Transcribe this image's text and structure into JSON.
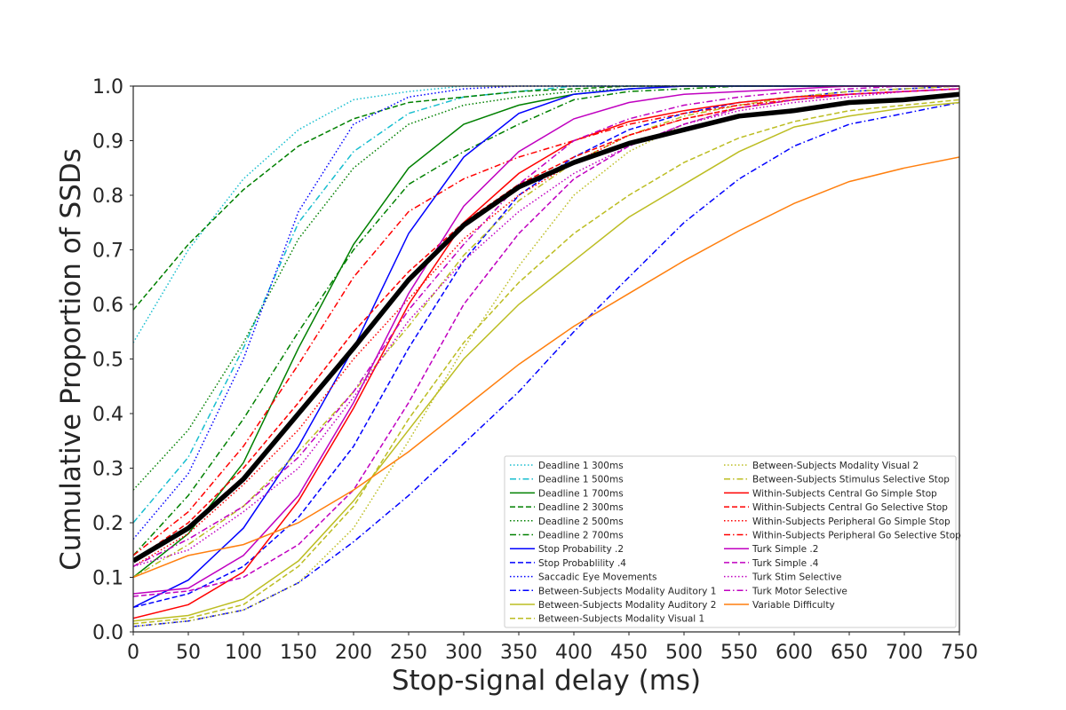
{
  "chart_data": {
    "type": "line",
    "xlabel": "Stop-signal delay (ms)",
    "ylabel": "Cumulative Proportion of SSDs",
    "xlim": [
      0,
      750
    ],
    "ylim": [
      0,
      1
    ],
    "x_ticks": [
      "0",
      "50",
      "100",
      "150",
      "200",
      "250",
      "300",
      "350",
      "400",
      "450",
      "500",
      "550",
      "600",
      "650",
      "700",
      "750"
    ],
    "y_ticks": [
      "0.0",
      "0.1",
      "0.2",
      "0.3",
      "0.4",
      "0.5",
      "0.6",
      "0.7",
      "0.8",
      "0.9",
      "1.0"
    ],
    "grid": false,
    "legend_position": "lower-right",
    "x": [
      0,
      50,
      100,
      150,
      200,
      250,
      300,
      350,
      400,
      450,
      500,
      550,
      600,
      650,
      700,
      750
    ],
    "series": [
      {
        "name": "Deadline 1 300ms",
        "color": "#17becf",
        "dash": "dotted",
        "values": [
          0.53,
          0.7,
          0.83,
          0.92,
          0.975,
          0.99,
          1.0,
          1.0,
          1.0,
          1.0,
          1.0,
          1.0,
          1.0,
          1.0,
          1.0,
          1.0
        ]
      },
      {
        "name": "Deadline 1 500ms",
        "color": "#17becf",
        "dash": "dashdot",
        "values": [
          0.2,
          0.32,
          0.52,
          0.75,
          0.88,
          0.95,
          0.98,
          0.99,
          1.0,
          1.0,
          1.0,
          1.0,
          1.0,
          1.0,
          1.0,
          1.0
        ]
      },
      {
        "name": "Deadline 1 700ms",
        "color": "#008000",
        "dash": "solid",
        "values": [
          0.1,
          0.18,
          0.31,
          0.52,
          0.71,
          0.85,
          0.93,
          0.965,
          0.985,
          0.995,
          1.0,
          1.0,
          1.0,
          1.0,
          1.0,
          1.0
        ]
      },
      {
        "name": "Deadline 2 300ms",
        "color": "#008000",
        "dash": "dashed",
        "values": [
          0.59,
          0.71,
          0.81,
          0.89,
          0.94,
          0.97,
          0.98,
          0.99,
          0.995,
          1.0,
          1.0,
          1.0,
          1.0,
          1.0,
          1.0,
          1.0
        ]
      },
      {
        "name": "Deadline 2 500ms",
        "color": "#008000",
        "dash": "dotted",
        "values": [
          0.26,
          0.37,
          0.53,
          0.72,
          0.85,
          0.93,
          0.965,
          0.98,
          0.99,
          0.995,
          1.0,
          1.0,
          1.0,
          1.0,
          1.0,
          1.0
        ]
      },
      {
        "name": "Deadline 2 700ms",
        "color": "#008000",
        "dash": "dashdot",
        "values": [
          0.14,
          0.25,
          0.39,
          0.55,
          0.7,
          0.82,
          0.88,
          0.93,
          0.975,
          0.99,
          0.995,
          1.0,
          1.0,
          1.0,
          1.0,
          1.0
        ]
      },
      {
        "name": "Stop Probability .2",
        "color": "#0000ff",
        "dash": "solid",
        "values": [
          0.045,
          0.095,
          0.19,
          0.34,
          0.52,
          0.73,
          0.87,
          0.95,
          0.985,
          0.995,
          1.0,
          1.0,
          1.0,
          1.0,
          1.0,
          1.0
        ]
      },
      {
        "name": "Stop Probablility .4",
        "color": "#0000ff",
        "dash": "dashed",
        "values": [
          0.045,
          0.07,
          0.12,
          0.21,
          0.34,
          0.52,
          0.68,
          0.8,
          0.87,
          0.92,
          0.95,
          0.97,
          0.98,
          0.99,
          0.995,
          1.0
        ]
      },
      {
        "name": "Saccadic Eye Movements",
        "color": "#0000ff",
        "dash": "dotted",
        "values": [
          0.17,
          0.29,
          0.5,
          0.77,
          0.93,
          0.98,
          0.995,
          1.0,
          1.0,
          1.0,
          1.0,
          1.0,
          1.0,
          1.0,
          1.0,
          1.0
        ]
      },
      {
        "name": "Between-Subjects Modality Auditory 1",
        "color": "#0000ff",
        "dash": "dashdot",
        "values": [
          0.01,
          0.02,
          0.04,
          0.09,
          0.165,
          0.25,
          0.345,
          0.44,
          0.55,
          0.65,
          0.75,
          0.83,
          0.89,
          0.93,
          0.95,
          0.97
        ]
      },
      {
        "name": "Between-Subjects Modality Auditory 2",
        "color": "#bcbd22",
        "dash": "solid",
        "values": [
          0.02,
          0.03,
          0.06,
          0.13,
          0.24,
          0.37,
          0.5,
          0.6,
          0.68,
          0.76,
          0.82,
          0.88,
          0.925,
          0.945,
          0.96,
          0.97
        ]
      },
      {
        "name": "Between-Subjects Modality Visual 1",
        "color": "#bcbd22",
        "dash": "dashed",
        "values": [
          0.015,
          0.025,
          0.05,
          0.12,
          0.23,
          0.39,
          0.53,
          0.64,
          0.73,
          0.8,
          0.86,
          0.905,
          0.935,
          0.955,
          0.965,
          0.975
        ]
      },
      {
        "name": "Between-Subjects Modality Visual 2",
        "color": "#bcbd22",
        "dash": "dotted",
        "values": [
          0.01,
          0.02,
          0.04,
          0.09,
          0.19,
          0.35,
          0.52,
          0.67,
          0.8,
          0.88,
          0.93,
          0.96,
          0.975,
          0.985,
          0.99,
          0.995
        ]
      },
      {
        "name": "Between-Subjects Stimulus Selective Stop",
        "color": "#bcbd22",
        "dash": "dashdot",
        "values": [
          0.1,
          0.16,
          0.23,
          0.33,
          0.44,
          0.56,
          0.69,
          0.79,
          0.86,
          0.91,
          0.945,
          0.965,
          0.98,
          0.99,
          0.995,
          1.0
        ]
      },
      {
        "name": "Within-Subjects Central Go Simple Stop",
        "color": "#ff0000",
        "dash": "solid",
        "values": [
          0.025,
          0.05,
          0.11,
          0.24,
          0.41,
          0.6,
          0.75,
          0.84,
          0.9,
          0.935,
          0.955,
          0.97,
          0.98,
          0.985,
          0.99,
          0.995
        ]
      },
      {
        "name": "Within-Subjects Central Go Selective Stop",
        "color": "#ff0000",
        "dash": "dashed",
        "values": [
          0.13,
          0.2,
          0.3,
          0.42,
          0.55,
          0.66,
          0.75,
          0.82,
          0.87,
          0.91,
          0.94,
          0.96,
          0.975,
          0.985,
          0.99,
          0.995
        ]
      },
      {
        "name": "Within-Subjects Peripheral Go Simple Stop",
        "color": "#ff0000",
        "dash": "dotted",
        "values": [
          0.12,
          0.18,
          0.27,
          0.37,
          0.5,
          0.61,
          0.72,
          0.8,
          0.86,
          0.91,
          0.94,
          0.96,
          0.975,
          0.985,
          0.99,
          0.995
        ]
      },
      {
        "name": "Within-Subjects Peripheral Go Selective Stop",
        "color": "#ff0000",
        "dash": "dashdot",
        "values": [
          0.14,
          0.22,
          0.34,
          0.49,
          0.65,
          0.77,
          0.83,
          0.87,
          0.9,
          0.93,
          0.95,
          0.965,
          0.975,
          0.985,
          0.99,
          0.995
        ]
      },
      {
        "name": "Turk Simple .2",
        "color": "#c000c0",
        "dash": "solid",
        "values": [
          0.07,
          0.08,
          0.14,
          0.25,
          0.42,
          0.62,
          0.78,
          0.88,
          0.94,
          0.97,
          0.985,
          0.99,
          0.995,
          1.0,
          1.0,
          1.0
        ]
      },
      {
        "name": "Turk Simple .4",
        "color": "#c000c0",
        "dash": "dashed",
        "values": [
          0.065,
          0.075,
          0.1,
          0.16,
          0.26,
          0.42,
          0.6,
          0.73,
          0.83,
          0.89,
          0.93,
          0.96,
          0.975,
          0.985,
          0.99,
          0.995
        ]
      },
      {
        "name": "Turk Stim Selective",
        "color": "#c000c0",
        "dash": "dotted",
        "values": [
          0.12,
          0.15,
          0.22,
          0.3,
          0.43,
          0.57,
          0.68,
          0.77,
          0.84,
          0.89,
          0.93,
          0.955,
          0.97,
          0.98,
          0.99,
          0.995
        ]
      },
      {
        "name": "Turk Motor Selective",
        "color": "#c000c0",
        "dash": "dashdot",
        "values": [
          0.12,
          0.17,
          0.23,
          0.32,
          0.44,
          0.59,
          0.71,
          0.82,
          0.9,
          0.94,
          0.965,
          0.98,
          0.99,
          0.995,
          1.0,
          1.0
        ]
      },
      {
        "name": "Variable Difficulty",
        "color": "#ff7f0e",
        "dash": "solid",
        "values": [
          0.1,
          0.14,
          0.16,
          0.2,
          0.26,
          0.33,
          0.41,
          0.49,
          0.56,
          0.62,
          0.68,
          0.735,
          0.785,
          0.825,
          0.85,
          0.87
        ]
      }
    ],
    "mean": {
      "color": "#000000",
      "values": [
        0.13,
        0.19,
        0.28,
        0.4,
        0.52,
        0.645,
        0.745,
        0.815,
        0.86,
        0.895,
        0.92,
        0.945,
        0.955,
        0.97,
        0.975,
        0.985
      ]
    }
  }
}
